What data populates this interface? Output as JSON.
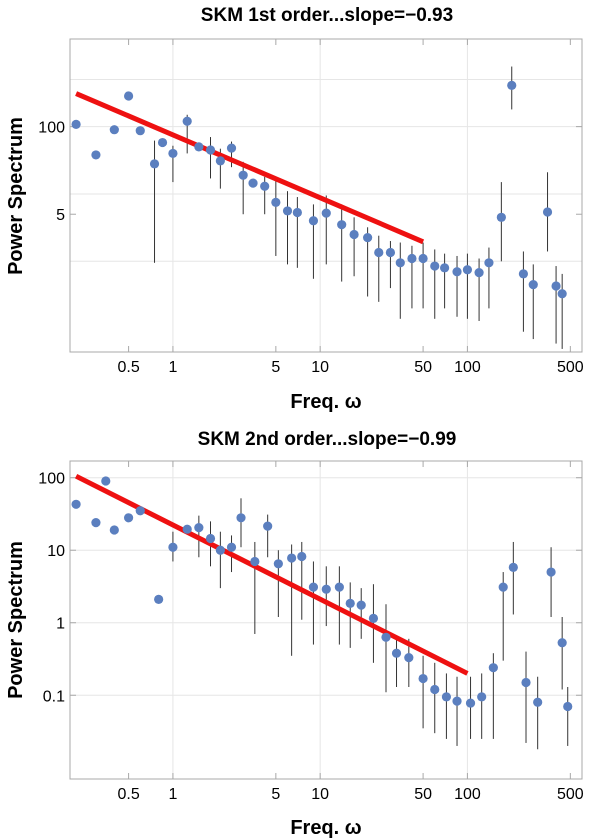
{
  "colors": {
    "points": "#5b7fbf",
    "fit_line": "#ee1111",
    "error_bars": "#333333",
    "frame": "#a8a8a8",
    "grid": "#e6e6e6"
  },
  "chart_data": [
    {
      "type": "scatter",
      "title": "SKM 1st order...slope=−0.93",
      "xlabel": "Freq. ω",
      "ylabel": "Power Spectrum",
      "xscale": "log",
      "yscale": "log",
      "xlim": [
        0.2,
        600
      ],
      "ylim": [
        0.045,
        2000
      ],
      "grid": true,
      "x_ticks": [
        {
          "v": 0.5,
          "label": "0.5"
        },
        {
          "v": 1,
          "label": "1"
        },
        {
          "v": 5,
          "label": "5"
        },
        {
          "v": 10,
          "label": "10"
        },
        {
          "v": 50,
          "label": "50"
        },
        {
          "v": 100,
          "label": "100"
        },
        {
          "v": 500,
          "label": "500"
        }
      ],
      "y_ticks": [
        {
          "v": 100,
          "label": "100"
        },
        {
          "v": 5,
          "label": "5"
        }
      ],
      "x_grid": [
        1,
        10,
        100
      ],
      "y_grid": [
        500,
        100,
        10,
        1
      ],
      "fit_line": {
        "slope": -0.93,
        "x": [
          0.22,
          50
        ],
        "y": [
          310,
          1.95
        ]
      },
      "points": [
        {
          "x": 0.22,
          "y": 108
        },
        {
          "x": 0.3,
          "y": 38
        },
        {
          "x": 0.4,
          "y": 90
        },
        {
          "x": 0.5,
          "y": 285
        },
        {
          "x": 0.6,
          "y": 87
        },
        {
          "x": 0.75,
          "y": 28,
          "lo": 0.95,
          "hi": 62
        },
        {
          "x": 0.85,
          "y": 58
        },
        {
          "x": 1.0,
          "y": 40,
          "lo": 15,
          "hi": 52
        },
        {
          "x": 1.25,
          "y": 120,
          "lo": 40,
          "hi": 150
        },
        {
          "x": 1.5,
          "y": 50
        },
        {
          "x": 1.8,
          "y": 45,
          "lo": 17,
          "hi": 70
        },
        {
          "x": 2.1,
          "y": 31,
          "lo": 12,
          "hi": 47
        },
        {
          "x": 2.5,
          "y": 48,
          "lo": 25,
          "hi": 60
        },
        {
          "x": 3.0,
          "y": 19,
          "lo": 5,
          "hi": 30
        },
        {
          "x": 3.5,
          "y": 14.5
        },
        {
          "x": 4.2,
          "y": 13,
          "lo": 5,
          "hi": 18
        },
        {
          "x": 5.0,
          "y": 7.5,
          "lo": 1.2,
          "hi": 16
        },
        {
          "x": 6.0,
          "y": 5.6,
          "lo": 0.9,
          "hi": 11
        },
        {
          "x": 7.0,
          "y": 5.3,
          "lo": 0.8,
          "hi": 9
        },
        {
          "x": 9.0,
          "y": 4.0,
          "lo": 0.55,
          "hi": 7
        },
        {
          "x": 11,
          "y": 5.2,
          "lo": 0.9,
          "hi": 9.5
        },
        {
          "x": 14,
          "y": 3.5,
          "lo": 0.5,
          "hi": 7
        },
        {
          "x": 17,
          "y": 2.5,
          "lo": 0.6,
          "hi": 4.5
        },
        {
          "x": 21,
          "y": 2.25,
          "lo": 0.3,
          "hi": 3.2
        },
        {
          "x": 25,
          "y": 1.35,
          "lo": 0.25,
          "hi": 2.4
        },
        {
          "x": 30,
          "y": 1.35,
          "lo": 0.4,
          "hi": 2.0
        },
        {
          "x": 35,
          "y": 0.95,
          "lo": 0.14,
          "hi": 1.9
        },
        {
          "x": 42,
          "y": 1.1,
          "lo": 0.2,
          "hi": 1.7
        },
        {
          "x": 50,
          "y": 1.1,
          "lo": 0.2,
          "hi": 1.9
        },
        {
          "x": 60,
          "y": 0.85,
          "lo": 0.14,
          "hi": 1.5
        },
        {
          "x": 70,
          "y": 0.8,
          "lo": 0.2,
          "hi": 1.3
        },
        {
          "x": 85,
          "y": 0.7,
          "lo": 0.15,
          "hi": 1.2
        },
        {
          "x": 100,
          "y": 0.75,
          "lo": 0.14,
          "hi": 1.3
        },
        {
          "x": 120,
          "y": 0.68,
          "lo": 0.13,
          "hi": 1.1
        },
        {
          "x": 140,
          "y": 0.95,
          "lo": 0.2,
          "hi": 1.6
        },
        {
          "x": 170,
          "y": 4.5,
          "lo": 1.0,
          "hi": 15
        },
        {
          "x": 200,
          "y": 410,
          "lo": 180,
          "hi": 780
        },
        {
          "x": 240,
          "y": 0.65,
          "lo": 0.09,
          "hi": 1.4
        },
        {
          "x": 280,
          "y": 0.45,
          "lo": 0.07,
          "hi": 0.9
        },
        {
          "x": 350,
          "y": 5.4,
          "lo": 1.4,
          "hi": 21
        },
        {
          "x": 400,
          "y": 0.43,
          "lo": 0.06,
          "hi": 0.85
        },
        {
          "x": 440,
          "y": 0.33,
          "lo": 0.05,
          "hi": 0.65
        }
      ]
    },
    {
      "type": "scatter",
      "title": "SKM 2nd order...slope=−0.99",
      "xlabel": "Freq. ω",
      "ylabel": "Power Spectrum",
      "xscale": "log",
      "yscale": "log",
      "xlim": [
        0.2,
        600
      ],
      "ylim": [
        0.007,
        170
      ],
      "grid": true,
      "x_ticks": [
        {
          "v": 0.5,
          "label": "0.5"
        },
        {
          "v": 1,
          "label": "1"
        },
        {
          "v": 5,
          "label": "5"
        },
        {
          "v": 10,
          "label": "10"
        },
        {
          "v": 50,
          "label": "50"
        },
        {
          "v": 100,
          "label": "100"
        },
        {
          "v": 500,
          "label": "500"
        }
      ],
      "y_ticks": [
        {
          "v": 100,
          "label": "100"
        },
        {
          "v": 10,
          "label": "10"
        },
        {
          "v": 1,
          "label": "1"
        },
        {
          "v": 0.1,
          "label": "0.1"
        }
      ],
      "x_grid": [
        1,
        10,
        100
      ],
      "y_grid": [
        100,
        10,
        1,
        0.1
      ],
      "fit_line": {
        "slope": -0.99,
        "x": [
          0.22,
          100
        ],
        "y": [
          105,
          0.2
        ]
      },
      "points": [
        {
          "x": 0.22,
          "y": 43
        },
        {
          "x": 0.3,
          "y": 24
        },
        {
          "x": 0.35,
          "y": 90
        },
        {
          "x": 0.4,
          "y": 19
        },
        {
          "x": 0.5,
          "y": 28
        },
        {
          "x": 0.6,
          "y": 35
        },
        {
          "x": 0.8,
          "y": 2.1
        },
        {
          "x": 1.0,
          "y": 11,
          "lo": 7,
          "hi": 18
        },
        {
          "x": 1.25,
          "y": 19.5
        },
        {
          "x": 1.5,
          "y": 20.5,
          "lo": 8,
          "hi": 30
        },
        {
          "x": 1.8,
          "y": 14.5,
          "lo": 6,
          "hi": 25
        },
        {
          "x": 2.1,
          "y": 10,
          "lo": 3,
          "hi": 18
        },
        {
          "x": 2.5,
          "y": 11,
          "lo": 5,
          "hi": 16
        },
        {
          "x": 2.9,
          "y": 28,
          "lo": 11,
          "hi": 52
        },
        {
          "x": 3.6,
          "y": 7,
          "lo": 0.7,
          "hi": 13
        },
        {
          "x": 4.4,
          "y": 21.5,
          "lo": 8,
          "hi": 31
        },
        {
          "x": 5.2,
          "y": 6.5,
          "lo": 1.2,
          "hi": 10
        },
        {
          "x": 6.4,
          "y": 7.8,
          "lo": 0.35,
          "hi": 12
        },
        {
          "x": 7.5,
          "y": 8.2,
          "lo": 1.1,
          "hi": 13
        },
        {
          "x": 9.0,
          "y": 3.1,
          "lo": 0.5,
          "hi": 7
        },
        {
          "x": 11,
          "y": 2.9,
          "lo": 0.9,
          "hi": 6
        },
        {
          "x": 13.5,
          "y": 3.1,
          "lo": 0.5,
          "hi": 6
        },
        {
          "x": 16,
          "y": 1.85,
          "lo": 0.45,
          "hi": 3.6
        },
        {
          "x": 19,
          "y": 1.75,
          "lo": 0.6,
          "hi": 3.0
        },
        {
          "x": 23,
          "y": 1.15,
          "lo": 0.28,
          "hi": 3.4
        },
        {
          "x": 28,
          "y": 0.63,
          "lo": 0.11,
          "hi": 1.8
        },
        {
          "x": 33,
          "y": 0.38,
          "lo": 0.13,
          "hi": 0.6
        },
        {
          "x": 40,
          "y": 0.33,
          "lo": 0.13,
          "hi": 0.6
        },
        {
          "x": 50,
          "y": 0.17,
          "lo": 0.035,
          "hi": 0.35
        },
        {
          "x": 60,
          "y": 0.12,
          "lo": 0.03,
          "hi": 0.28
        },
        {
          "x": 72,
          "y": 0.095,
          "lo": 0.025,
          "hi": 0.2
        },
        {
          "x": 85,
          "y": 0.083,
          "lo": 0.02,
          "hi": 0.18
        },
        {
          "x": 105,
          "y": 0.078,
          "lo": 0.025,
          "hi": 0.18
        },
        {
          "x": 125,
          "y": 0.095,
          "lo": 0.025,
          "hi": 0.2
        },
        {
          "x": 150,
          "y": 0.24,
          "lo": 0.025,
          "hi": 0.38
        },
        {
          "x": 175,
          "y": 3.1,
          "lo": 0.3,
          "hi": 5
        },
        {
          "x": 205,
          "y": 5.8,
          "lo": 1.3,
          "hi": 13
        },
        {
          "x": 250,
          "y": 0.15,
          "lo": 0.022,
          "hi": 0.4
        },
        {
          "x": 300,
          "y": 0.08,
          "lo": 0.018,
          "hi": 0.18
        },
        {
          "x": 370,
          "y": 5.0,
          "lo": 1.2,
          "hi": 11
        },
        {
          "x": 440,
          "y": 0.53,
          "lo": 0.12,
          "hi": 1.2
        },
        {
          "x": 480,
          "y": 0.07,
          "lo": 0.02,
          "hi": 0.13
        }
      ]
    }
  ]
}
